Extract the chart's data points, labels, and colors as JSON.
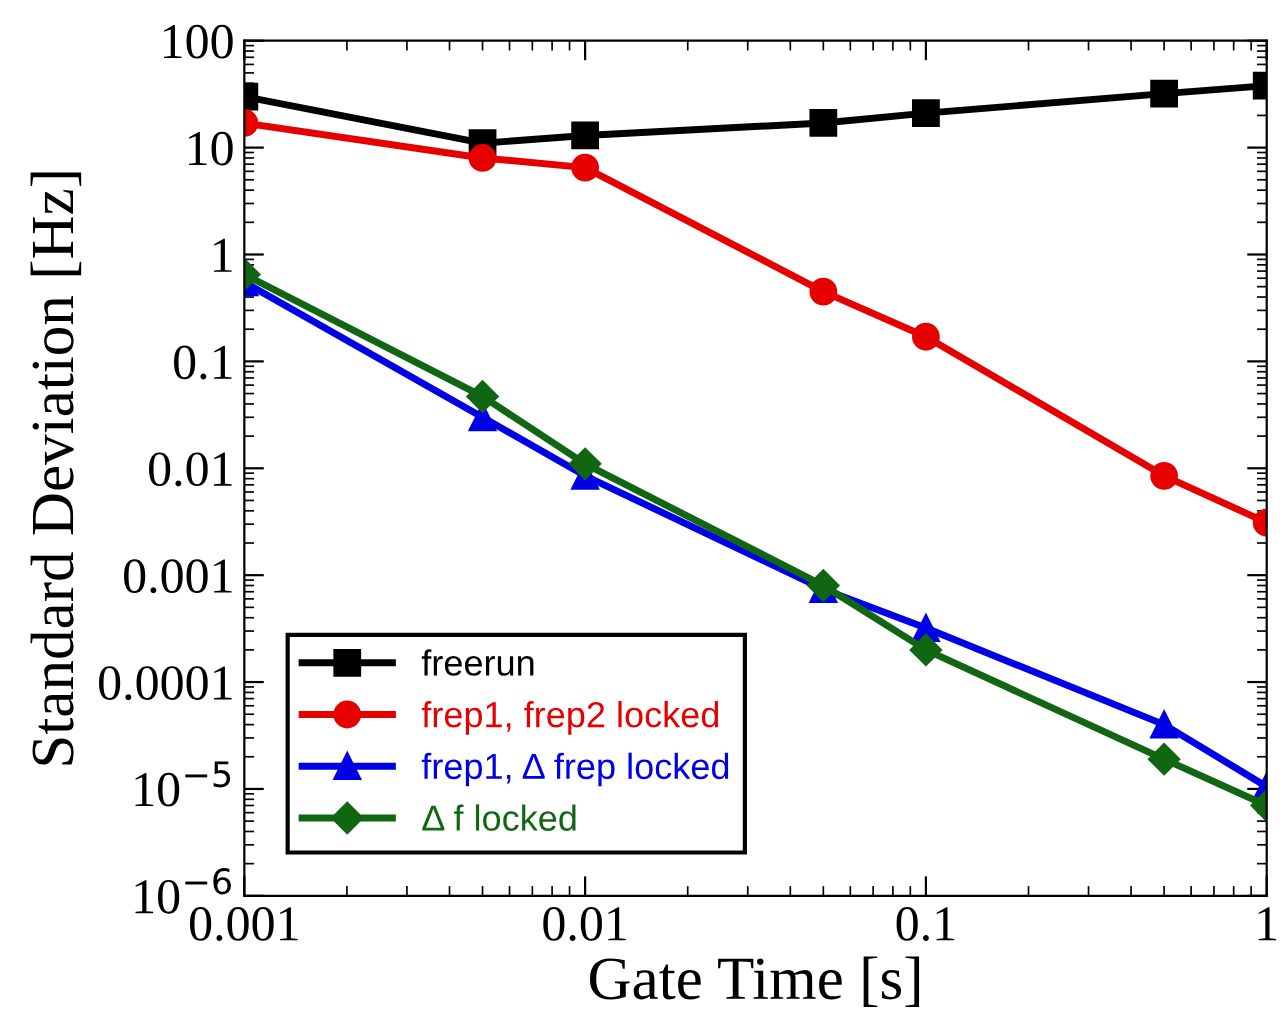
{
  "chart_data": {
    "type": "line",
    "xlabel": "Gate Time [s]",
    "ylabel": "Standard Deviation [Hz]",
    "log": "xy",
    "grid": false,
    "legend": "bottom left",
    "x": [
      0.001,
      0.005,
      0.01,
      0.05,
      0.1,
      0.5,
      1
    ],
    "xlim": [
      0.001,
      1
    ],
    "xticks": [
      0.001,
      0.01,
      0.1,
      1
    ],
    "ylim": [
      1e-06,
      100
    ],
    "yticks": [
      {
        "value": 1e-06,
        "label": "10$^{−6}$"
      },
      {
        "value": 1e-05,
        "label": "10$^{−5}$"
      },
      0.0001,
      0.001,
      0.01,
      0.1,
      1,
      10,
      100
    ],
    "series": [
      {
        "name": "freerun",
        "color": "#000000",
        "marker": "square",
        "values": [
          30,
          11,
          13,
          17,
          21,
          32,
          38
        ]
      },
      {
        "name": "frep1, frep2 locked",
        "color": "#e60000",
        "marker": "circle",
        "values": [
          17,
          8,
          6.5,
          0.45,
          0.17,
          0.0085,
          0.0031
        ]
      },
      {
        "name": "frep1, Δ frep locked",
        "color": "#0000e6",
        "marker": "triangle",
        "values": [
          0.55,
          0.03,
          0.0085,
          0.00074,
          0.00032,
          4e-05,
          1.05e-05
        ]
      },
      {
        "name": "Δ f locked",
        "color": "#116611",
        "marker": "diamond",
        "values": [
          0.65,
          0.047,
          0.011,
          0.0008,
          0.0002,
          1.9e-05,
          7e-06
        ]
      }
    ]
  }
}
